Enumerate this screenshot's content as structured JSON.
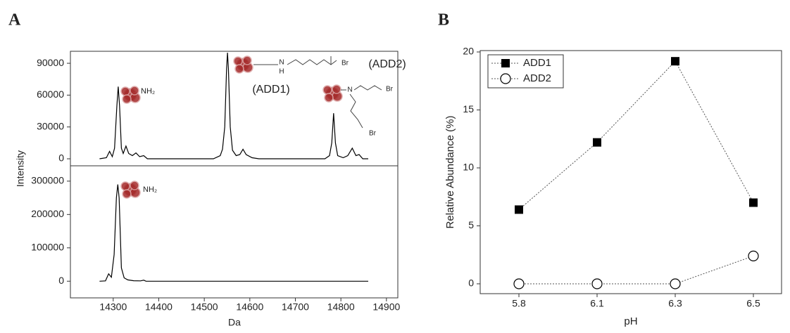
{
  "chart_data": [
    {
      "type": "line",
      "panel": "A",
      "ylabel": "Intensity",
      "color": "#000000",
      "xlim": [
        14206,
        14925
      ],
      "ylim": [
        -6600,
        101300
      ],
      "yticks": [
        0,
        30000,
        60000,
        90000
      ],
      "x": [
        14270,
        14285,
        14292,
        14298,
        14303,
        14308,
        14311,
        14314,
        14318,
        14322,
        14328,
        14334,
        14342,
        14350,
        14358,
        14367,
        14375,
        14520,
        14535,
        14540,
        14545,
        14549,
        14551,
        14553,
        14557,
        14562,
        14570,
        14578,
        14585,
        14592,
        14605,
        14620,
        14765,
        14775,
        14780,
        14784,
        14788,
        14793,
        14805,
        14815,
        14825,
        14833,
        14840,
        14848,
        14860
      ],
      "values": [
        0,
        1000,
        7000,
        2000,
        10000,
        50000,
        68000,
        50000,
        10000,
        5000,
        12000,
        5000,
        3000,
        5500,
        2000,
        3000,
        0,
        0,
        3000,
        9000,
        30000,
        85000,
        100000,
        85000,
        30000,
        8000,
        3000,
        4000,
        9000,
        4000,
        1000,
        0,
        0,
        3000,
        15000,
        43000,
        15000,
        3000,
        1000,
        3000,
        10000,
        3000,
        4000,
        0,
        0
      ],
      "annotations": [
        "NH₂",
        "(ADD1)",
        "(ADD2)",
        "N",
        "H",
        "Br",
        "N",
        "Br",
        "Br"
      ]
    },
    {
      "type": "line",
      "xlabel": "Da",
      "color": "#000000",
      "xlim": [
        14206,
        14925
      ],
      "ylim": [
        -50000,
        346000
      ],
      "yticks": [
        0,
        100000,
        200000,
        300000
      ],
      "xticks": [
        14300,
        14400,
        14500,
        14600,
        14700,
        14800,
        14900
      ],
      "x": [
        14270,
        14283,
        14290,
        14296,
        14302,
        14307,
        14310,
        14313,
        14318,
        14324,
        14332,
        14345,
        14360,
        14367,
        14372,
        14860
      ],
      "values": [
        0,
        1000,
        22000,
        12000,
        80000,
        250000,
        290000,
        250000,
        40000,
        10000,
        4000,
        1500,
        1000,
        3000,
        0,
        0
      ],
      "annotations": [
        "NH₂"
      ]
    },
    {
      "type": "scatter-line",
      "panel": "B",
      "xlabel": "pH",
      "ylabel": "Relative Abundance (%)",
      "categories": [
        "5.8",
        "6.1",
        "6.3",
        "6.5"
      ],
      "ylim": [
        -0.85,
        20.12
      ],
      "yticks": [
        0,
        5,
        10,
        15,
        20
      ],
      "legend": "upper left",
      "series": [
        {
          "name": "ADD1",
          "color": "#000000",
          "marker": "square",
          "values": [
            6.4,
            12.2,
            19.2,
            7.0
          ]
        },
        {
          "name": "ADD2",
          "color": "#000000",
          "marker": "circle",
          "values": [
            0,
            0,
            0,
            2.4
          ]
        }
      ]
    }
  ]
}
